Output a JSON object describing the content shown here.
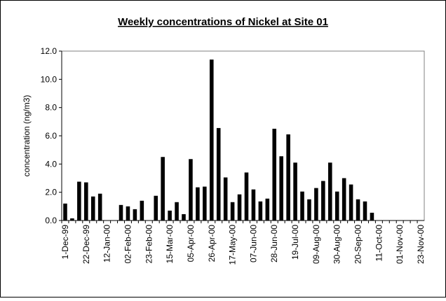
{
  "chart_data": {
    "type": "bar",
    "title": "Weekly concentrations of Nickel at Site 01",
    "y_label": "concentration (ng/m3)",
    "categories": [
      "1-Dec-99",
      null,
      null,
      "22-Dec-99",
      null,
      null,
      "12-Jan-00",
      null,
      null,
      "02-Feb-00",
      null,
      null,
      "23-Feb-00",
      null,
      null,
      "15-Mar-00",
      null,
      null,
      "05-Apr-00",
      null,
      null,
      "26-Apr-00",
      null,
      null,
      "17-May-00",
      null,
      null,
      "07-Jun-00",
      null,
      null,
      "28-Jun-00",
      null,
      null,
      "19-Jul-00",
      null,
      null,
      "09-Aug-00",
      null,
      null,
      "30-Aug-00",
      null,
      null,
      "20-Sep-00",
      null,
      null,
      "11-Oct-00",
      null,
      null,
      "01-Nov-00",
      null,
      null,
      "23-Nov-00"
    ],
    "values": [
      1.2,
      0.15,
      2.75,
      2.7,
      1.7,
      1.9,
      0,
      0,
      1.1,
      1.0,
      0.8,
      1.4,
      0,
      1.75,
      4.5,
      0.7,
      1.3,
      0.45,
      4.35,
      2.35,
      2.4,
      11.4,
      6.55,
      3.05,
      1.3,
      1.85,
      3.4,
      2.2,
      1.35,
      1.55,
      6.5,
      4.55,
      6.1,
      4.1,
      2.05,
      1.5,
      2.3,
      2.8,
      4.1,
      2.05,
      3.0,
      2.55,
      1.5,
      1.35,
      0.55,
      0,
      0,
      0,
      0,
      0,
      0,
      0
    ],
    "color": "#000000",
    "ylim": [
      0,
      12
    ],
    "yticks": [
      {
        "value": 0,
        "label": "0.0"
      },
      {
        "value": 2,
        "label": "2.0"
      },
      {
        "value": 4,
        "label": "4.0"
      },
      {
        "value": 6,
        "label": "6.0"
      },
      {
        "value": 8,
        "label": "8.0"
      },
      {
        "value": 10,
        "label": "10.0"
      },
      {
        "value": 12,
        "label": "12.0"
      }
    ],
    "grid": false
  }
}
